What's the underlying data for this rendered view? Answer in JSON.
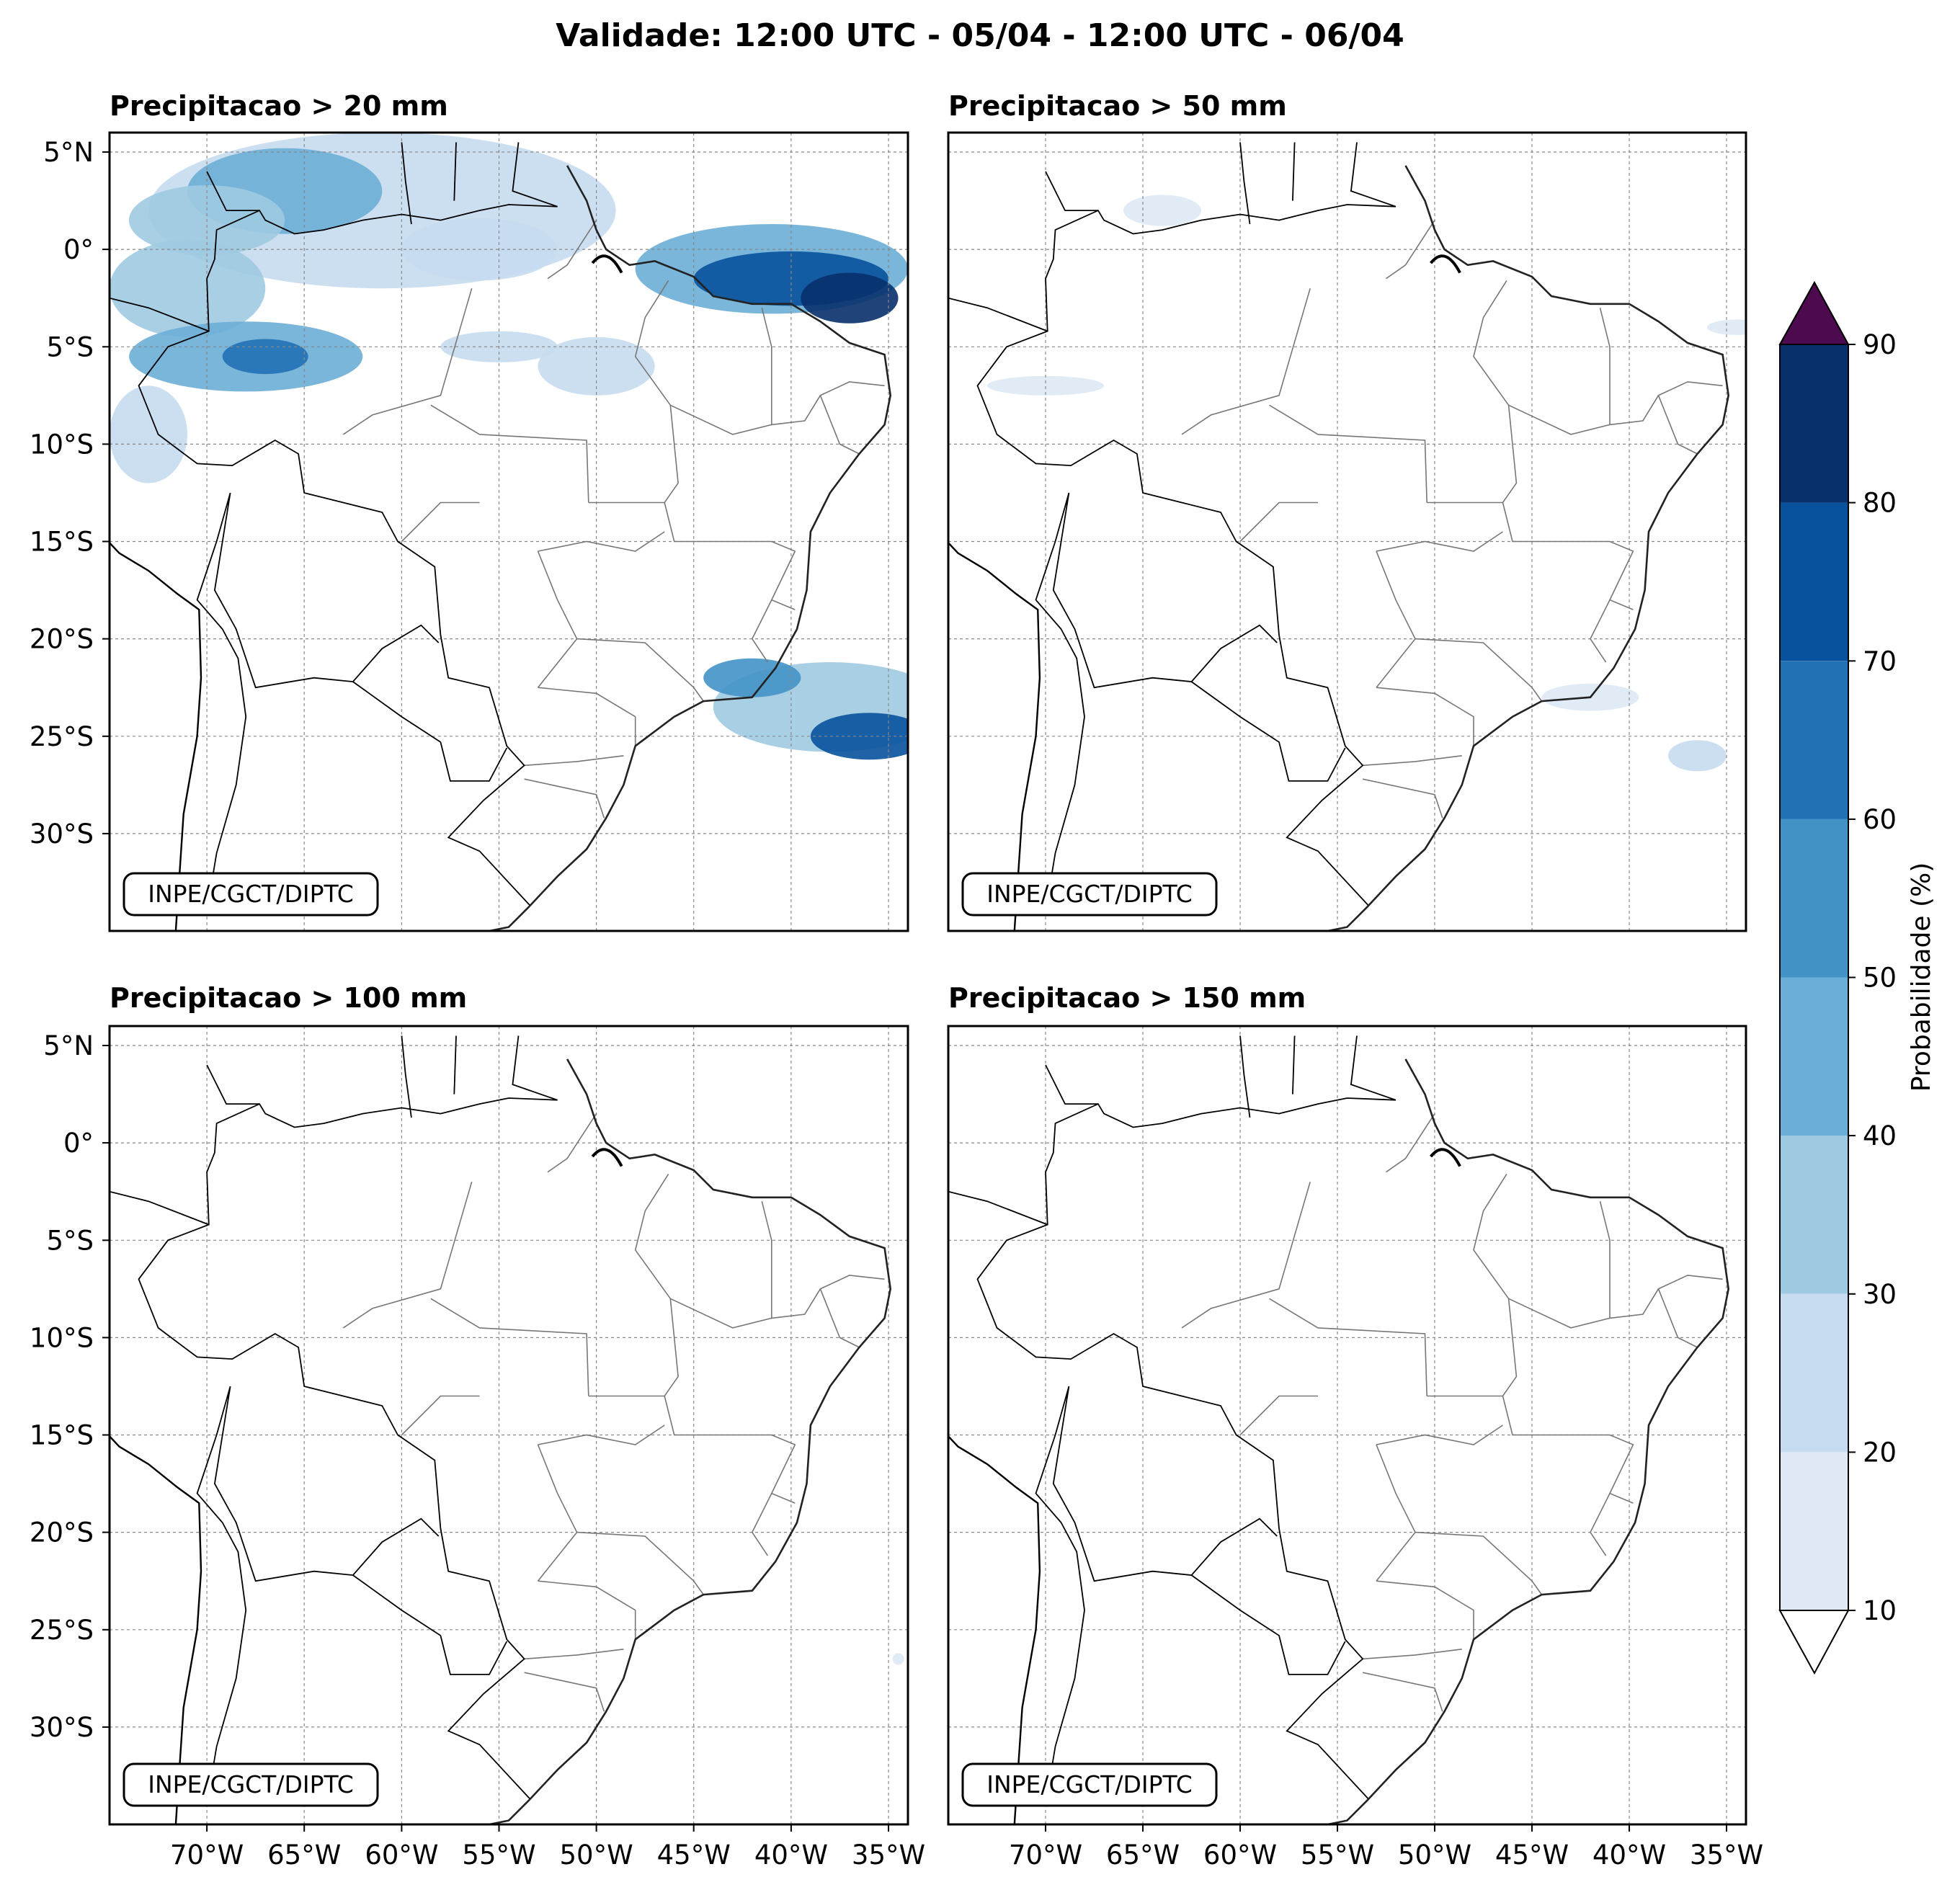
{
  "title": "Validade: 12:00 UTC - 05/04 - 12:00 UTC - 06/04",
  "panels": [
    {
      "title": "Precipitacao > 20 mm",
      "credit": "INPE/CGCT/DIPTC"
    },
    {
      "title": "Precipitacao > 50 mm",
      "credit": "INPE/CGCT/DIPTC"
    },
    {
      "title": "Precipitacao > 100 mm",
      "credit": "INPE/CGCT/DIPTC"
    },
    {
      "title": "Precipitacao > 150 mm",
      "credit": "INPE/CGCT/DIPTC"
    }
  ],
  "lat_ticks": [
    {
      "value": 5,
      "label": "5°N"
    },
    {
      "value": 0,
      "label": "0°"
    },
    {
      "value": -5,
      "label": "5°S"
    },
    {
      "value": -10,
      "label": "10°S"
    },
    {
      "value": -15,
      "label": "15°S"
    },
    {
      "value": -20,
      "label": "20°S"
    },
    {
      "value": -25,
      "label": "25°S"
    },
    {
      "value": -30,
      "label": "30°S"
    }
  ],
  "lon_ticks": [
    {
      "value": -70,
      "label": "70°W"
    },
    {
      "value": -65,
      "label": "65°W"
    },
    {
      "value": -60,
      "label": "60°W"
    },
    {
      "value": -55,
      "label": "55°W"
    },
    {
      "value": -50,
      "label": "50°W"
    },
    {
      "value": -45,
      "label": "45°W"
    },
    {
      "value": -40,
      "label": "40°W"
    },
    {
      "value": -35,
      "label": "35°W"
    }
  ],
  "extent": {
    "lon": [
      -75,
      -34
    ],
    "lat": [
      -35,
      6
    ]
  },
  "colorbar": {
    "label": "Probabilidade (%)",
    "levels": [
      10,
      20,
      30,
      40,
      50,
      60,
      70,
      80,
      90
    ],
    "tick_labels": [
      "10",
      "20",
      "30",
      "40",
      "50",
      "60",
      "70",
      "80",
      "90"
    ],
    "colors": [
      "#dee9f5",
      "#c6dbef",
      "#9ecae1",
      "#6baed6",
      "#4292c6",
      "#2171b5",
      "#08519c",
      "#08306b"
    ],
    "over_color": "#4d0a4e",
    "under_color": "#ffffff"
  },
  "precip_blobs": [
    [
      {
        "lon": -61,
        "lat": 2,
        "rx": 12,
        "ry": 4,
        "level": 1
      },
      {
        "lon": -66,
        "lat": 3,
        "rx": 5,
        "ry": 2.2,
        "level": 3
      },
      {
        "lon": -70,
        "lat": 1.5,
        "rx": 4,
        "ry": 1.8,
        "level": 2
      },
      {
        "lon": -56,
        "lat": 0,
        "rx": 4,
        "ry": 1.6,
        "level": 1
      },
      {
        "lon": -71,
        "lat": -2,
        "rx": 4,
        "ry": 2.5,
        "level": 2
      },
      {
        "lon": -68,
        "lat": -5.5,
        "rx": 6,
        "ry": 1.8,
        "level": 3
      },
      {
        "lon": -67,
        "lat": -5.5,
        "rx": 2.2,
        "ry": 0.9,
        "level": 5
      },
      {
        "lon": -73,
        "lat": -9.5,
        "rx": 2,
        "ry": 2.5,
        "level": 1
      },
      {
        "lon": -41,
        "lat": -1,
        "rx": 7,
        "ry": 2.3,
        "level": 3
      },
      {
        "lon": -40,
        "lat": -1.5,
        "rx": 5,
        "ry": 1.4,
        "level": 6
      },
      {
        "lon": -37,
        "lat": -2.5,
        "rx": 2.5,
        "ry": 1.3,
        "level": 7
      },
      {
        "lon": -50,
        "lat": -6,
        "rx": 3,
        "ry": 1.5,
        "level": 1
      },
      {
        "lon": -55,
        "lat": -5,
        "rx": 3,
        "ry": 0.8,
        "level": 1
      },
      {
        "lon": -38,
        "lat": -23.5,
        "rx": 6,
        "ry": 2.3,
        "level": 2
      },
      {
        "lon": -36,
        "lat": -25,
        "rx": 3,
        "ry": 1.2,
        "level": 6
      },
      {
        "lon": -42,
        "lat": -22,
        "rx": 2.5,
        "ry": 1.0,
        "level": 4
      }
    ],
    [
      {
        "lon": -70,
        "lat": -7,
        "rx": 3,
        "ry": 0.5,
        "level": 0
      },
      {
        "lon": -64,
        "lat": 2,
        "rx": 2,
        "ry": 0.8,
        "level": 0
      },
      {
        "lon": -42,
        "lat": -23,
        "rx": 2.5,
        "ry": 0.7,
        "level": 0
      },
      {
        "lon": -36.5,
        "lat": -26,
        "rx": 1.5,
        "ry": 0.8,
        "level": 1
      },
      {
        "lon": -34.5,
        "lat": -4,
        "rx": 1.5,
        "ry": 0.4,
        "level": 0
      }
    ],
    [
      {
        "lon": -34.5,
        "lat": -26.5,
        "rx": 0.3,
        "ry": 0.3,
        "level": 0
      }
    ],
    []
  ]
}
